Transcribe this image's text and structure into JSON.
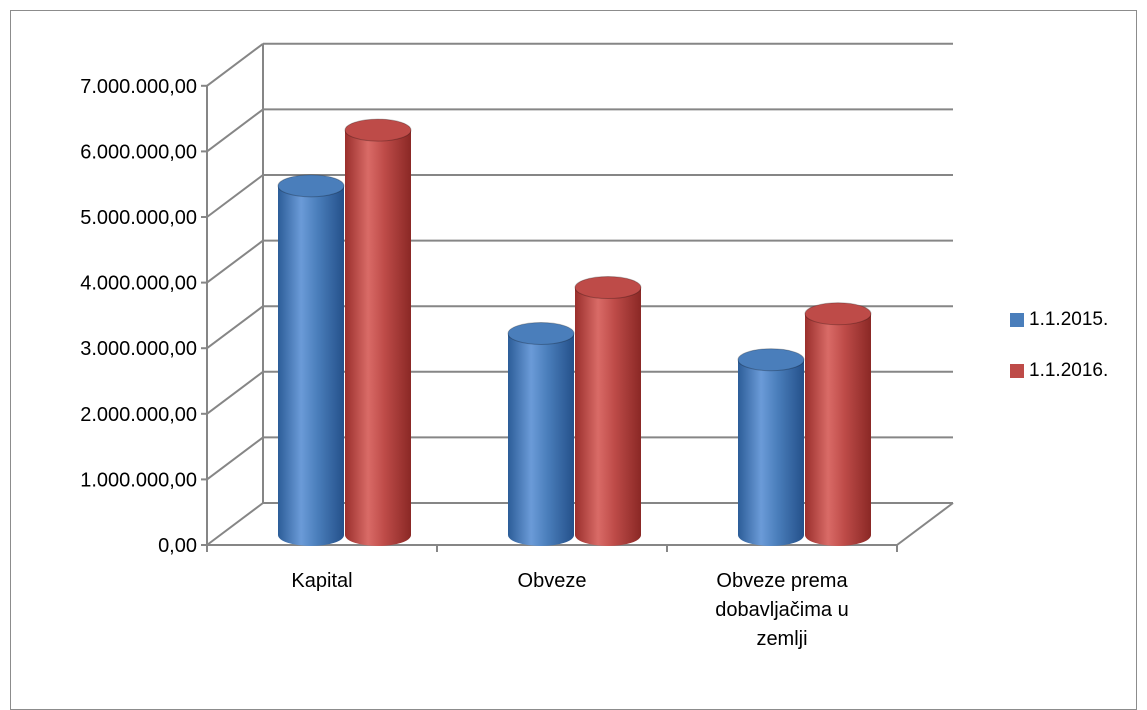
{
  "chart_data": {
    "type": "bar",
    "title": "",
    "xlabel": "",
    "ylabel": "",
    "ylim": [
      0,
      7000000
    ],
    "y_ticks": [
      "0,00",
      "1.000.000,00",
      "2.000.000,00",
      "3.000.000,00",
      "4.000.000,00",
      "5.000.000,00",
      "6.000.000,00",
      "7.000.000,00"
    ],
    "categories": [
      "Kapital",
      "Obveze",
      "Obveze prema dobavljačima u zemlji"
    ],
    "category_lines": [
      [
        "Kapital"
      ],
      [
        "Obveze"
      ],
      [
        "Obveze prema",
        "dobavljačima u",
        "zemlji"
      ]
    ],
    "series": [
      {
        "name": "1.1.2015.",
        "color": "#4a7ebb",
        "values": [
          5200000,
          2950000,
          2550000
        ]
      },
      {
        "name": "1.1.2016.",
        "color": "#be4b48",
        "values": [
          6050000,
          3650000,
          3250000
        ]
      }
    ],
    "legend_position": "right",
    "grid": true
  }
}
